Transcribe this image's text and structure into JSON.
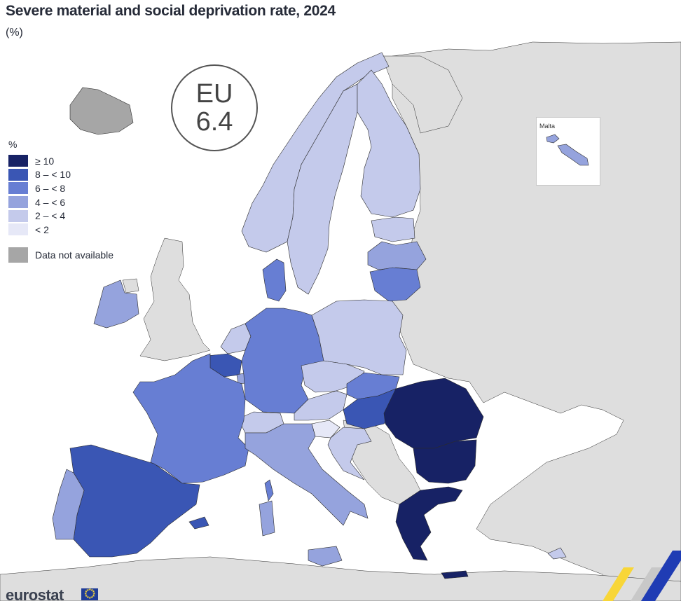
{
  "title": "Severe material and social deprivation rate, 2024",
  "subtitle": "(%)",
  "eu_badge": {
    "line1": "EU",
    "line2": "6.4"
  },
  "legend": {
    "unit": "%",
    "classes": [
      {
        "label": "≥ 10",
        "color": "#172265"
      },
      {
        "label": "8 – < 10",
        "color": "#3a56b4"
      },
      {
        "label": "6 – < 8",
        "color": "#677ed3"
      },
      {
        "label": "4 – < 6",
        "color": "#95a3dd"
      },
      {
        "label": "2 – < 4",
        "color": "#c4caeb"
      },
      {
        "label": "< 2",
        "color": "#e6e8f7"
      }
    ],
    "not_available": {
      "label": "Data not available",
      "color": "#a6a6a6"
    }
  },
  "inset": {
    "label": "Malta"
  },
  "colors": {
    "non_eu": "#dedede",
    "sea": "#ffffff",
    "border": "#2b2b2b"
  },
  "map_data": {
    "Spain": "8 – < 10",
    "Portugal": "4 – < 6",
    "France": "6 – < 8",
    "Belgium": "8 – < 10",
    "Luxembourg": "4 – < 6",
    "Netherlands": "2 – < 4",
    "Germany": "6 – < 8",
    "Ireland": "4 – < 6",
    "Denmark": "6 – < 8",
    "Sweden": "2 – < 4",
    "Finland": "2 – < 4",
    "Estonia": "2 – < 4",
    "Latvia": "4 – < 6",
    "Lithuania": "6 – < 8",
    "Poland": "2 – < 4",
    "Czechia": "2 – < 4",
    "Slovakia": "6 – < 8",
    "Austria": "2 – < 4",
    "Slovenia": "< 2",
    "Croatia": "2 – < 4",
    "Hungary": "8 – < 10",
    "Romania": "≥ 10",
    "Bulgaria": "≥ 10",
    "Greece": "≥ 10",
    "Italy": "4 – < 6",
    "Malta": "4 – < 6",
    "Cyprus": "2 – < 4",
    "Switzerland": "2 – < 4",
    "Norway": "2 – < 4",
    "Iceland": "Data not available"
  },
  "logo": "eurostat"
}
